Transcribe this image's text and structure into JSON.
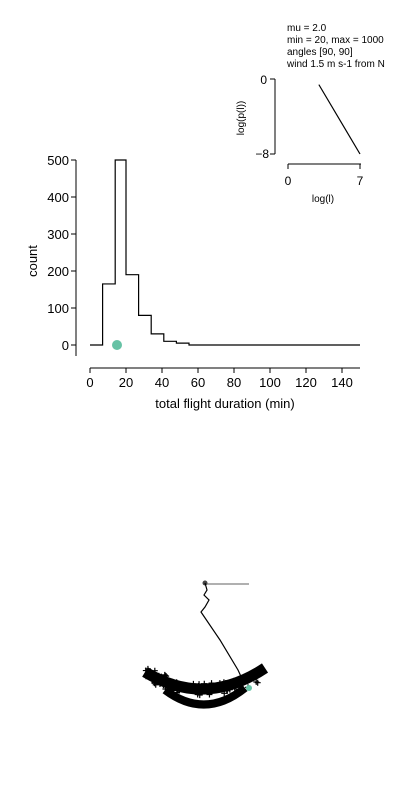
{
  "info": {
    "lines": [
      "mu = 2.0",
      "min = 20, max = 1000",
      "angles [90, 90]",
      "wind 1.5 m s-1 from N"
    ]
  },
  "colors": {
    "marker": "#66c2a5",
    "line": "#000000",
    "track_gray": "#808080"
  },
  "chart_data": [
    {
      "type": "bar",
      "style": "step-histogram",
      "xlabel": "total flight duration (min)",
      "ylabel": "count",
      "xlim": [
        -7,
        150
      ],
      "ylim": [
        -30,
        500
      ],
      "x_ticks": [
        "0",
        "20",
        "40",
        "60",
        "80",
        "100",
        "120",
        "140"
      ],
      "y_ticks": [
        "0",
        "100",
        "200",
        "300",
        "400",
        "500"
      ],
      "bin_edges": [
        0,
        7,
        14,
        20,
        27,
        34,
        41,
        48,
        55,
        150
      ],
      "values": [
        0,
        165,
        510,
        190,
        80,
        30,
        10,
        5,
        0
      ],
      "marker": {
        "x": 15,
        "y": 0
      }
    },
    {
      "type": "line",
      "xlabel": "log(l)",
      "ylabel": "log(p(l))",
      "xlim": [
        0,
        7
      ],
      "ylim": [
        -8,
        0
      ],
      "x_ticks": [
        "0",
        "7"
      ],
      "y_ticks": [
        "0",
        "−8"
      ],
      "x": [
        3,
        7
      ],
      "y": [
        -0.6,
        -8
      ]
    }
  ]
}
